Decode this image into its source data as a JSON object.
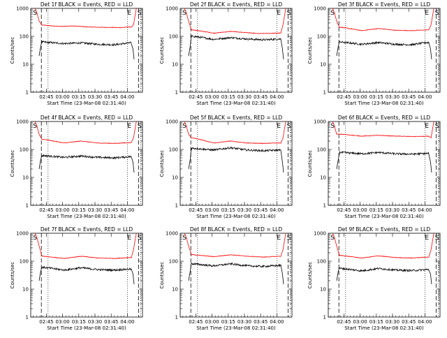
{
  "chart_data": [
    {
      "type": "line",
      "title": "Det 1f BLACK = Events, RED = LLD",
      "ylabel": "Counts/sec",
      "xlabel": "Start Time (23-Mar-08 02:31:40)",
      "xtick_labels": [
        "02:45",
        "03:00",
        "03:15",
        "03:30",
        "03:45",
        "04:00"
      ],
      "ytick_labels": [
        "1",
        "10",
        "100",
        "1000"
      ],
      "scale": "log",
      "ylim": [
        1,
        1000
      ],
      "markers": [
        "S",
        "E",
        "S"
      ],
      "series": [
        {
          "color": "#ff0000",
          "profile": [
            [
              0.12,
              250
            ],
            [
              0.25,
              225
            ],
            [
              0.38,
              235
            ],
            [
              0.52,
              215
            ],
            [
              0.65,
              210
            ],
            [
              0.8,
              205
            ],
            [
              0.88,
              215
            ]
          ]
        },
        {
          "color": "#000000",
          "profile": [
            [
              0.12,
              62
            ],
            [
              0.3,
              55
            ],
            [
              0.45,
              58
            ],
            [
              0.6,
              52
            ],
            [
              0.75,
              50
            ],
            [
              0.88,
              58
            ]
          ]
        }
      ]
    },
    {
      "type": "line",
      "title": "Det 2f BLACK = Events, RED = LLD",
      "ylabel": "Counts/sec",
      "xlabel": "Start Time (23-Mar-08 02:31:40)",
      "xtick_labels": [
        "02:45",
        "03:00",
        "03:15",
        "03:30",
        "03:45",
        "04:00"
      ],
      "ytick_labels": [
        "1",
        "10",
        "100",
        "1000"
      ],
      "scale": "log",
      "ylim": [
        1,
        1000
      ],
      "markers": [
        "S",
        "E",
        "S"
      ],
      "series": [
        {
          "color": "#ff0000",
          "profile": [
            [
              0.12,
              170
            ],
            [
              0.3,
              130
            ],
            [
              0.45,
              150
            ],
            [
              0.55,
              140
            ],
            [
              0.7,
              125
            ],
            [
              0.88,
              130
            ]
          ]
        },
        {
          "color": "#000000",
          "profile": [
            [
              0.12,
              100
            ],
            [
              0.3,
              78
            ],
            [
              0.45,
              90
            ],
            [
              0.6,
              80
            ],
            [
              0.75,
              75
            ],
            [
              0.88,
              80
            ]
          ]
        }
      ]
    },
    {
      "type": "line",
      "title": "Det 3f BLACK = Events, RED = LLD",
      "ylabel": "Counts/sec",
      "xlabel": "Start Time (23-Mar-08 02:31:40)",
      "xtick_labels": [
        "02:45",
        "03:00",
        "03:15",
        "03:30",
        "03:45",
        "04:00"
      ],
      "ytick_labels": [
        "1",
        "10",
        "100",
        "1000"
      ],
      "scale": "log",
      "ylim": [
        1,
        1000
      ],
      "markers": [
        "S",
        "E",
        "S"
      ],
      "series": [
        {
          "color": "#ff0000",
          "profile": [
            [
              0.12,
              210
            ],
            [
              0.3,
              160
            ],
            [
              0.45,
              190
            ],
            [
              0.6,
              165
            ],
            [
              0.75,
              160
            ],
            [
              0.88,
              170
            ]
          ]
        },
        {
          "color": "#000000",
          "profile": [
            [
              0.12,
              62
            ],
            [
              0.3,
              52
            ],
            [
              0.45,
              60
            ],
            [
              0.6,
              52
            ],
            [
              0.75,
              50
            ],
            [
              0.88,
              60
            ]
          ]
        }
      ]
    },
    {
      "type": "line",
      "title": "Det 4f BLACK = Events, RED = LLD",
      "ylabel": "Counts/sec",
      "xlabel": "Start Time (23-Mar-08 02:31:40)",
      "xtick_labels": [
        "02:45",
        "03:00",
        "03:15",
        "03:30",
        "03:45",
        "04:00"
      ],
      "ytick_labels": [
        "1",
        "10",
        "100",
        "1000"
      ],
      "scale": "log",
      "ylim": [
        1,
        1000
      ],
      "markers": [
        "S",
        "E",
        "S"
      ],
      "series": [
        {
          "color": "#ff0000",
          "profile": [
            [
              0.12,
              230
            ],
            [
              0.3,
              170
            ],
            [
              0.45,
              200
            ],
            [
              0.6,
              170
            ],
            [
              0.75,
              165
            ],
            [
              0.88,
              175
            ]
          ]
        },
        {
          "color": "#000000",
          "profile": [
            [
              0.12,
              60
            ],
            [
              0.3,
              52
            ],
            [
              0.45,
              58
            ],
            [
              0.6,
              52
            ],
            [
              0.75,
              50
            ],
            [
              0.88,
              55
            ]
          ]
        }
      ]
    },
    {
      "type": "line",
      "title": "Det 5f BLACK = Events, RED = LLD",
      "ylabel": "Counts/sec",
      "xlabel": "Start Time (23-Mar-08 02:31:40)",
      "xtick_labels": [
        "02:45",
        "03:00",
        "03:15",
        "03:30",
        "03:45",
        "04:00"
      ],
      "ytick_labels": [
        "1",
        "10",
        "100",
        "1000"
      ],
      "scale": "log",
      "ylim": [
        1,
        1000
      ],
      "markers": [
        "S",
        "E",
        "S"
      ],
      "series": [
        {
          "color": "#ff0000",
          "profile": [
            [
              0.12,
              260
            ],
            [
              0.3,
              170
            ],
            [
              0.45,
              200
            ],
            [
              0.6,
              170
            ],
            [
              0.75,
              165
            ],
            [
              0.88,
              170
            ]
          ]
        },
        {
          "color": "#000000",
          "profile": [
            [
              0.12,
              110
            ],
            [
              0.3,
              95
            ],
            [
              0.45,
              115
            ],
            [
              0.6,
              95
            ],
            [
              0.75,
              90
            ],
            [
              0.88,
              95
            ]
          ]
        }
      ]
    },
    {
      "type": "line",
      "title": "Det 6f BLACK = Events, RED = LLD",
      "ylabel": "Counts/sec",
      "xlabel": "Start Time (23-Mar-08 02:31:40)",
      "xtick_labels": [
        "02:45",
        "03:00",
        "03:15",
        "03:30",
        "03:45",
        "04:00"
      ],
      "ytick_labels": [
        "1",
        "10",
        "100",
        "1000"
      ],
      "scale": "log",
      "ylim": [
        1,
        1000
      ],
      "markers": [
        "S",
        "E",
        "S"
      ],
      "series": [
        {
          "color": "#ff0000",
          "profile": [
            [
              0.12,
              350
            ],
            [
              0.3,
              300
            ],
            [
              0.45,
              320
            ],
            [
              0.6,
              300
            ],
            [
              0.75,
              290
            ],
            [
              0.88,
              295
            ]
          ]
        },
        {
          "color": "#000000",
          "profile": [
            [
              0.12,
              78
            ],
            [
              0.3,
              70
            ],
            [
              0.45,
              78
            ],
            [
              0.6,
              70
            ],
            [
              0.75,
              68
            ],
            [
              0.88,
              72
            ]
          ]
        }
      ]
    },
    {
      "type": "line",
      "title": "Det 7f BLACK = Events, RED = LLD",
      "ylabel": "Counts/sec",
      "xlabel": "Start Time (23-Mar-08 02:31:40)",
      "xtick_labels": [
        "02:45",
        "03:00",
        "03:15",
        "03:30",
        "03:45",
        "04:00"
      ],
      "ytick_labels": [
        "1",
        "10",
        "100",
        "1000"
      ],
      "scale": "log",
      "ylim": [
        1,
        1000
      ],
      "markers": [
        "S",
        "E",
        "S"
      ],
      "series": [
        {
          "color": "#ff0000",
          "profile": [
            [
              0.12,
              150
            ],
            [
              0.3,
              125
            ],
            [
              0.45,
              150
            ],
            [
              0.6,
              130
            ],
            [
              0.75,
              125
            ],
            [
              0.88,
              135
            ]
          ]
        },
        {
          "color": "#000000",
          "profile": [
            [
              0.12,
              60
            ],
            [
              0.3,
              48
            ],
            [
              0.45,
              58
            ],
            [
              0.6,
              50
            ],
            [
              0.75,
              48
            ],
            [
              0.88,
              52
            ]
          ]
        }
      ]
    },
    {
      "type": "line",
      "title": "Det 8f BLACK = Events, RED = LLD",
      "ylabel": "Counts/sec",
      "xlabel": "Start Time (23-Mar-08 02:31:40)",
      "xtick_labels": [
        "02:45",
        "03:00",
        "03:15",
        "03:30",
        "03:45",
        "04:00"
      ],
      "ytick_labels": [
        "1",
        "10",
        "100",
        "1000"
      ],
      "scale": "log",
      "ylim": [
        1,
        1000
      ],
      "markers": [
        "S",
        "E",
        "S"
      ],
      "series": [
        {
          "color": "#ff0000",
          "profile": [
            [
              0.12,
              170
            ],
            [
              0.3,
              145
            ],
            [
              0.45,
              170
            ],
            [
              0.6,
              150
            ],
            [
              0.75,
              140
            ],
            [
              0.88,
              150
            ]
          ]
        },
        {
          "color": "#000000",
          "profile": [
            [
              0.12,
              80
            ],
            [
              0.3,
              68
            ],
            [
              0.45,
              80
            ],
            [
              0.6,
              68
            ],
            [
              0.75,
              65
            ],
            [
              0.88,
              70
            ]
          ]
        }
      ]
    },
    {
      "type": "line",
      "title": "Det 9f BLACK = Events, RED = LLD",
      "ylabel": "Counts/sec",
      "xlabel": "Start Time (23-Mar-08 02:31:40)",
      "xtick_labels": [
        "02:45",
        "03:00",
        "03:15",
        "03:30",
        "03:45",
        "04:00"
      ],
      "ytick_labels": [
        "1",
        "10",
        "100",
        "1000"
      ],
      "scale": "log",
      "ylim": [
        1,
        1000
      ],
      "markers": [
        "S",
        "E",
        "S"
      ],
      "series": [
        {
          "color": "#ff0000",
          "profile": [
            [
              0.12,
              160
            ],
            [
              0.3,
              130
            ],
            [
              0.45,
              155
            ],
            [
              0.6,
              135
            ],
            [
              0.75,
              130
            ],
            [
              0.88,
              140
            ]
          ]
        },
        {
          "color": "#000000",
          "profile": [
            [
              0.12,
              55
            ],
            [
              0.3,
              45
            ],
            [
              0.45,
              55
            ],
            [
              0.6,
              48
            ],
            [
              0.75,
              46
            ],
            [
              0.88,
              50
            ]
          ]
        }
      ]
    }
  ]
}
